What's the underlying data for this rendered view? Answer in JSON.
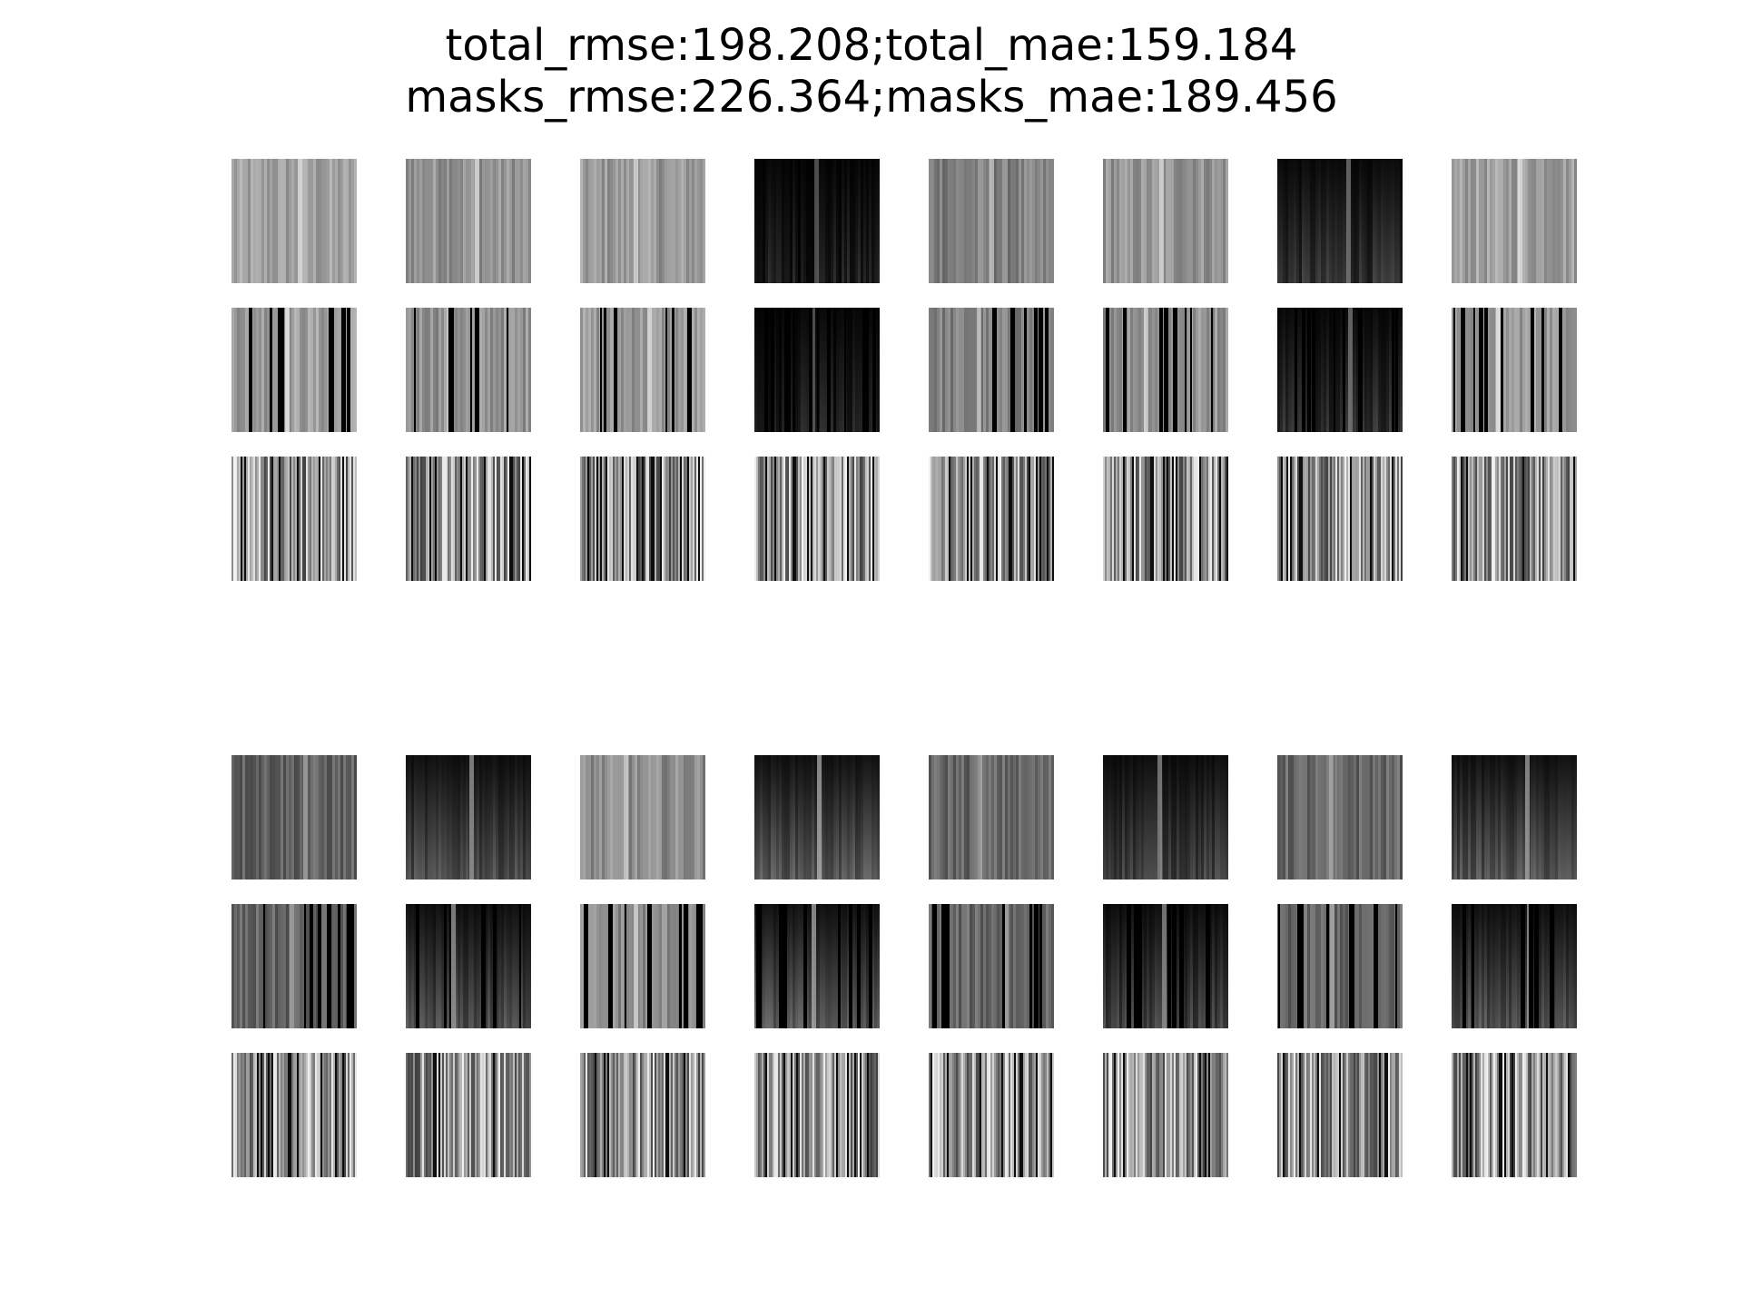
{
  "figure": {
    "title_line1": "total_rmse:198.208;total_mae:159.184",
    "title_line2": "masks_rmse:226.364;masks_mae:189.456"
  },
  "grid": {
    "blocks": 2,
    "rows_per_block": 3,
    "columns": 8,
    "row_kinds": [
      "original",
      "masked",
      "reconstruction"
    ],
    "colormap": "grayscale",
    "axes_visible": false,
    "column_tone": [
      [
        0.62,
        0.58,
        0.6,
        0.12,
        0.5,
        0.58,
        0.22,
        0.62
      ],
      [
        0.38,
        0.35,
        0.55,
        0.4,
        0.4,
        0.3,
        0.4,
        0.38
      ]
    ],
    "column_dark_region": [
      [
        false,
        false,
        false,
        true,
        false,
        false,
        true,
        false
      ],
      [
        false,
        true,
        false,
        true,
        false,
        true,
        false,
        true
      ]
    ]
  }
}
